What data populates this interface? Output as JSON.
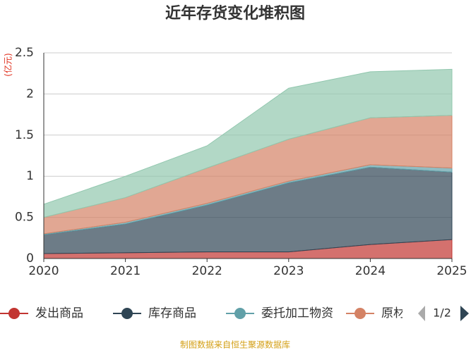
{
  "chart_data": {
    "type": "stacked_area",
    "title": "近年存货变化堆积图",
    "y_unit": "(亿元)",
    "x": [
      2020,
      2021,
      2022,
      2023,
      2024,
      2025
    ],
    "xlim": [
      2020,
      2025
    ],
    "xticks": [
      2020,
      2021,
      2022,
      2023,
      2024,
      2025
    ],
    "ylim": [
      0,
      2.5
    ],
    "yticks": [
      0,
      0.5,
      1,
      1.5,
      2,
      2.5
    ],
    "grid": true,
    "series": [
      {
        "name": "发出商品",
        "color": "#c23531",
        "values": [
          0.06,
          0.07,
          0.08,
          0.08,
          0.17,
          0.23
        ]
      },
      {
        "name": "库存商品",
        "color": "#2f4554",
        "values": [
          0.23,
          0.35,
          0.57,
          0.84,
          0.94,
          0.82
        ]
      },
      {
        "name": "委托加工物资",
        "color": "#61a0a8",
        "values": [
          0.01,
          0.02,
          0.02,
          0.02,
          0.03,
          0.05
        ]
      },
      {
        "name": "原材",
        "color": "#d48265",
        "values": [
          0.2,
          0.3,
          0.43,
          0.51,
          0.57,
          0.64
        ]
      },
      {
        "color": "#91c7ae",
        "values": [
          0.16,
          0.26,
          0.27,
          0.62,
          0.56,
          0.56
        ]
      }
    ],
    "legend_page": "1/2",
    "source": "制图数据来自恒生聚源数据库"
  }
}
